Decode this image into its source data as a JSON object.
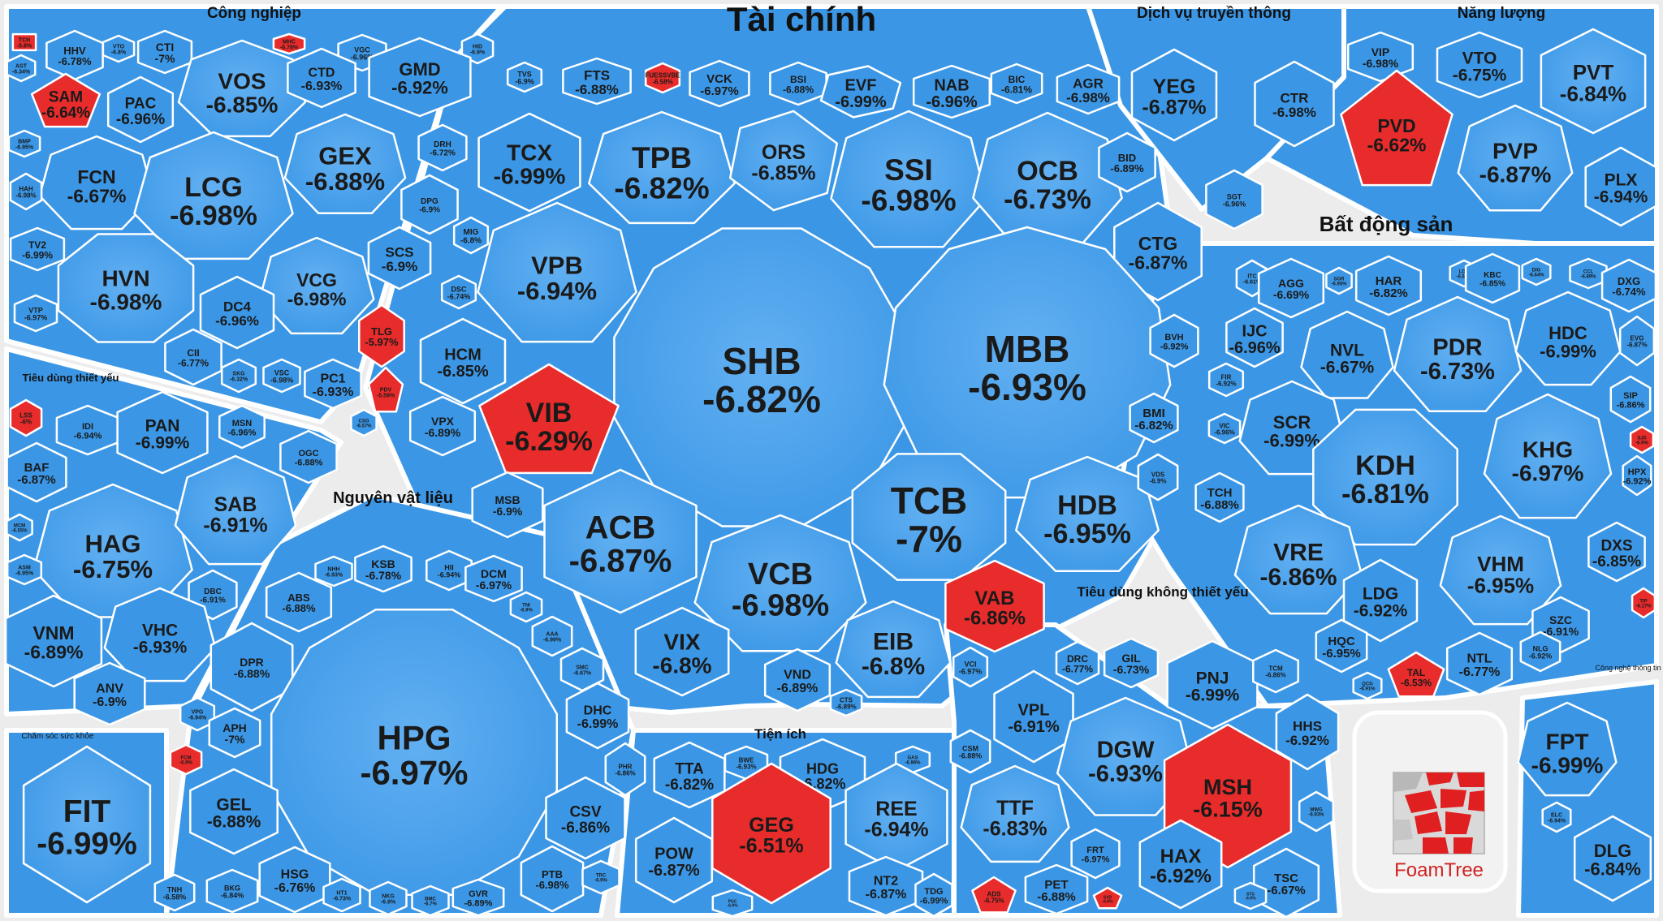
{
  "chart_data": {
    "type": "voronoi-treemap",
    "colors": {
      "down": "#3b97e6",
      "down_light": "#62b0f2",
      "red": "#e82b2b",
      "bg": "#efefef",
      "border": "#ffffff"
    },
    "logo_text": "FoamTree",
    "groups": [
      {
        "name": "Tài chính",
        "items": [
          {
            "ticker": "TVS",
            "change": "-6.9%"
          },
          {
            "ticker": "FTS",
            "change": "-6.88%"
          },
          {
            "ticker": "FUESSVBE",
            "change": "-6.58%"
          },
          {
            "ticker": "VCK",
            "change": "-6.97%"
          },
          {
            "ticker": "BSI",
            "change": "-6.88%"
          },
          {
            "ticker": "EVF",
            "change": "-6.99%"
          },
          {
            "ticker": "NAB",
            "change": "-6.96%"
          },
          {
            "ticker": "BIC",
            "change": "-6.81%"
          },
          {
            "ticker": "AGR",
            "change": "-6.98%"
          },
          {
            "ticker": "TCX",
            "change": "-6.99%"
          },
          {
            "ticker": "TPB",
            "change": "-6.82%"
          },
          {
            "ticker": "ORS",
            "change": "-6.85%"
          },
          {
            "ticker": "SSI",
            "change": "-6.98%"
          },
          {
            "ticker": "OCB",
            "change": "-6.73%"
          },
          {
            "ticker": "BID",
            "change": "-6.89%"
          },
          {
            "ticker": "MIG",
            "change": "-6.8%"
          },
          {
            "ticker": "VPB",
            "change": "-6.94%"
          },
          {
            "ticker": "CTG",
            "change": "-6.87%"
          },
          {
            "ticker": "SHB",
            "change": "-6.82%"
          },
          {
            "ticker": "MBB",
            "change": "-6.93%"
          },
          {
            "ticker": "DSC",
            "change": "-6.74%"
          },
          {
            "ticker": "HCM",
            "change": "-6.85%"
          },
          {
            "ticker": "BVH",
            "change": "-6.92%"
          },
          {
            "ticker": "VIB",
            "change": "-6.29%"
          },
          {
            "ticker": "VPX",
            "change": "-6.89%"
          },
          {
            "ticker": "BMI",
            "change": "-6.82%"
          },
          {
            "ticker": "MSB",
            "change": "-6.9%"
          },
          {
            "ticker": "ACB",
            "change": "-6.87%"
          },
          {
            "ticker": "TCB",
            "change": "-7%"
          },
          {
            "ticker": "HDB",
            "change": "-6.95%"
          },
          {
            "ticker": "VDS",
            "change": "-6.9%"
          },
          {
            "ticker": "VCB",
            "change": "-6.98%"
          },
          {
            "ticker": "VAB",
            "change": "-6.86%"
          },
          {
            "ticker": "VIX",
            "change": "-6.8%"
          },
          {
            "ticker": "EIB",
            "change": "-6.8%"
          },
          {
            "ticker": "VND",
            "change": "-6.89%"
          },
          {
            "ticker": "VCI",
            "change": "-6.97%"
          },
          {
            "ticker": "CTS",
            "change": "-6.89%"
          }
        ]
      },
      {
        "name": "Công nghiệp",
        "items": [
          {
            "ticker": "TCH",
            "change": "-5.8%"
          },
          {
            "ticker": "HHV",
            "change": "-6.78%"
          },
          {
            "ticker": "VTO",
            "change": "-6.8%"
          },
          {
            "ticker": "CTI",
            "change": "-7%"
          },
          {
            "ticker": "MHC",
            "change": "-6.78%"
          },
          {
            "ticker": "VGC",
            "change": "-6.96%"
          },
          {
            "ticker": "HID",
            "change": "-6.9%"
          },
          {
            "ticker": "AST",
            "change": "-6.34%"
          },
          {
            "ticker": "VOS",
            "change": "-6.85%"
          },
          {
            "ticker": "CTD",
            "change": "-6.93%"
          },
          {
            "ticker": "GMD",
            "change": "-6.92%"
          },
          {
            "ticker": "SAM",
            "change": "-6.64%"
          },
          {
            "ticker": "PAC",
            "change": "-6.96%"
          },
          {
            "ticker": "BMP",
            "change": "-6.95%"
          },
          {
            "ticker": "GEX",
            "change": "-6.88%"
          },
          {
            "ticker": "DRH",
            "change": "-6.72%"
          },
          {
            "ticker": "FCN",
            "change": "-6.67%"
          },
          {
            "ticker": "LCG",
            "change": "-6.98%"
          },
          {
            "ticker": "HAH",
            "change": "-6.98%"
          },
          {
            "ticker": "DPG",
            "change": "-6.9%"
          },
          {
            "ticker": "TV2",
            "change": "-6.99%"
          },
          {
            "ticker": "SCS",
            "change": "-6.9%"
          },
          {
            "ticker": "HVN",
            "change": "-6.98%"
          },
          {
            "ticker": "VCG",
            "change": "-6.98%"
          },
          {
            "ticker": "DC4",
            "change": "-6.96%"
          },
          {
            "ticker": "VTP",
            "change": "-6.97%"
          },
          {
            "ticker": "TLG",
            "change": "-5.97%"
          },
          {
            "ticker": "CII",
            "change": "-6.77%"
          },
          {
            "ticker": "SKG",
            "change": "-6.32%"
          },
          {
            "ticker": "VSC",
            "change": "-6.98%"
          },
          {
            "ticker": "PC1",
            "change": "-6.93%"
          },
          {
            "ticker": "PDV",
            "change": "-5.59%"
          },
          {
            "ticker": "CSG",
            "change": "-6.57%"
          }
        ]
      },
      {
        "name": "Dịch vụ truyền thông",
        "items": [
          {
            "ticker": "YEG",
            "change": "-6.87%"
          },
          {
            "ticker": "CTR",
            "change": "-6.98%"
          },
          {
            "ticker": "SGT",
            "change": "-6.96%"
          }
        ]
      },
      {
        "name": "Năng lượng",
        "items": [
          {
            "ticker": "VIP",
            "change": "-6.98%"
          },
          {
            "ticker": "VTO",
            "change": "-6.75%"
          },
          {
            "ticker": "PVT",
            "change": "-6.84%"
          },
          {
            "ticker": "PVD",
            "change": "-6.62%"
          },
          {
            "ticker": "PVP",
            "change": "-6.87%"
          },
          {
            "ticker": "PLX",
            "change": "-6.94%"
          }
        ]
      },
      {
        "name": "Bất động sản",
        "items": [
          {
            "ticker": "ITC",
            "change": "-6.61%"
          },
          {
            "ticker": "AGG",
            "change": "-6.69%"
          },
          {
            "ticker": "SGR",
            "change": "-6.95%"
          },
          {
            "ticker": "HAR",
            "change": "-6.82%"
          },
          {
            "ticker": "LDG",
            "change": "-6.67%"
          },
          {
            "ticker": "KBC",
            "change": "-6.85%"
          },
          {
            "ticker": "DIG",
            "change": "-6.64%"
          },
          {
            "ticker": "CCL",
            "change": "-6.89%"
          },
          {
            "ticker": "DXG",
            "change": "-6.74%"
          },
          {
            "ticker": "IJC",
            "change": "-6.96%"
          },
          {
            "ticker": "NVL",
            "change": "-6.67%"
          },
          {
            "ticker": "PDR",
            "change": "-6.73%"
          },
          {
            "ticker": "HDC",
            "change": "-6.99%"
          },
          {
            "ticker": "EVG",
            "change": "-6.87%"
          },
          {
            "ticker": "FIR",
            "change": "-6.92%"
          },
          {
            "ticker": "SCR",
            "change": "-6.99%"
          },
          {
            "ticker": "SIP",
            "change": "-6.86%"
          },
          {
            "ticker": "VIC",
            "change": "-6.96%"
          },
          {
            "ticker": "KDH",
            "change": "-6.81%"
          },
          {
            "ticker": "KHG",
            "change": "-6.97%"
          },
          {
            "ticker": "SJS",
            "change": "-6.9%"
          },
          {
            "ticker": "TCH",
            "change": "-6.88%"
          },
          {
            "ticker": "HPX",
            "change": "-6.92%"
          },
          {
            "ticker": "VRE",
            "change": "-6.86%"
          },
          {
            "ticker": "VHM",
            "change": "-6.95%"
          },
          {
            "ticker": "DXS",
            "change": "-6.85%"
          },
          {
            "ticker": "LDG",
            "change": "-6.92%"
          },
          {
            "ticker": "TIP",
            "change": "-6.17%"
          },
          {
            "ticker": "HQC",
            "change": "-6.95%"
          },
          {
            "ticker": "SZC",
            "change": "-6.91%"
          },
          {
            "ticker": "QCG",
            "change": "-6.91%"
          },
          {
            "ticker": "TAL",
            "change": "-6.53%"
          },
          {
            "ticker": "NTL",
            "change": "-6.77%"
          },
          {
            "ticker": "NLG",
            "change": "-6.92%"
          }
        ]
      },
      {
        "name": "Tiêu dùng thiết yếu",
        "items": [
          {
            "ticker": "LSS",
            "change": "-6%"
          },
          {
            "ticker": "IDI",
            "change": "-6.94%"
          },
          {
            "ticker": "PAN",
            "change": "-6.99%"
          },
          {
            "ticker": "MSN",
            "change": "-6.96%"
          },
          {
            "ticker": "OGC",
            "change": "-6.88%"
          },
          {
            "ticker": "BAF",
            "change": "-6.87%"
          },
          {
            "ticker": "HAG",
            "change": "-6.75%"
          },
          {
            "ticker": "SAB",
            "change": "-6.91%"
          },
          {
            "ticker": "MCM",
            "change": "-6.55%"
          },
          {
            "ticker": "ASM",
            "change": "-6.95%"
          },
          {
            "ticker": "DBC",
            "change": "-6.91%"
          },
          {
            "ticker": "VNM",
            "change": "-6.89%"
          },
          {
            "ticker": "VHC",
            "change": "-6.93%"
          },
          {
            "ticker": "ANV",
            "change": "-6.9%"
          }
        ]
      },
      {
        "name": "Nguyên vật liệu",
        "items": [
          {
            "ticker": "NHH",
            "change": "-6.93%"
          },
          {
            "ticker": "KSB",
            "change": "-6.78%"
          },
          {
            "ticker": "HII",
            "change": "-6.94%"
          },
          {
            "ticker": "DCM",
            "change": "-6.97%"
          },
          {
            "ticker": "TNI",
            "change": "-6.9%"
          },
          {
            "ticker": "ABS",
            "change": "-6.88%"
          },
          {
            "ticker": "AAA",
            "change": "-6.99%"
          },
          {
            "ticker": "SMC",
            "change": "-6.67%"
          },
          {
            "ticker": "DPR",
            "change": "-6.88%"
          },
          {
            "ticker": "DHC",
            "change": "-6.99%"
          },
          {
            "ticker": "VPG",
            "change": "-6.94%"
          },
          {
            "ticker": "APH",
            "change": "-7%"
          },
          {
            "ticker": "HPG",
            "change": "-6.97%"
          },
          {
            "ticker": "PHR",
            "change": "-6.86%"
          },
          {
            "ticker": "FCM",
            "change": "-6.9%"
          },
          {
            "ticker": "GEL",
            "change": "-6.88%"
          },
          {
            "ticker": "CSV",
            "change": "-6.86%"
          },
          {
            "ticker": "BKG",
            "change": "-6.84%"
          },
          {
            "ticker": "HSG",
            "change": "-6.76%"
          },
          {
            "ticker": "HT1",
            "change": "-6.73%"
          },
          {
            "ticker": "NKG",
            "change": "-6.9%"
          },
          {
            "ticker": "BMC",
            "change": "-6.7%"
          },
          {
            "ticker": "GVR",
            "change": "-6.89%"
          },
          {
            "ticker": "PTB",
            "change": "-6.98%"
          },
          {
            "ticker": "TRC",
            "change": "-6.9%"
          }
        ]
      },
      {
        "name": "Chăm sóc sức khỏe",
        "items": [
          {
            "ticker": "FIT",
            "change": "-6.99%"
          },
          {
            "ticker": "TNH",
            "change": "-6.58%"
          }
        ]
      },
      {
        "name": "Tiện ích",
        "items": [
          {
            "ticker": "TTA",
            "change": "-6.82%"
          },
          {
            "ticker": "BWE",
            "change": "-6.93%"
          },
          {
            "ticker": "HDG",
            "change": "-6.82%"
          },
          {
            "ticker": "GAS",
            "change": "-6.96%"
          },
          {
            "ticker": "GEG",
            "change": "-6.51%"
          },
          {
            "ticker": "REE",
            "change": "-6.94%"
          },
          {
            "ticker": "POW",
            "change": "-6.87%"
          },
          {
            "ticker": "NT2",
            "change": "-6.87%"
          },
          {
            "ticker": "PGC",
            "change": "-6.9%"
          },
          {
            "ticker": "TDG",
            "change": "-6.99%"
          }
        ]
      },
      {
        "name": "Tiêu dùng không thiết yếu",
        "items": [
          {
            "ticker": "DRC",
            "change": "-6.77%"
          },
          {
            "ticker": "GIL",
            "change": "-6.73%"
          },
          {
            "ticker": "PNJ",
            "change": "-6.99%"
          },
          {
            "ticker": "TCM",
            "change": "-6.86%"
          },
          {
            "ticker": "VPL",
            "change": "-6.91%"
          },
          {
            "ticker": "HHS",
            "change": "-6.92%"
          },
          {
            "ticker": "CSM",
            "change": "-6.88%"
          },
          {
            "ticker": "DGW",
            "change": "-6.93%"
          },
          {
            "ticker": "MSH",
            "change": "-6.15%"
          },
          {
            "ticker": "MWG",
            "change": "-6.93%"
          },
          {
            "ticker": "TTF",
            "change": "-6.83%"
          },
          {
            "ticker": "FRT",
            "change": "-6.97%"
          },
          {
            "ticker": "HAX",
            "change": "-6.92%"
          },
          {
            "ticker": "TSC",
            "change": "-6.67%"
          },
          {
            "ticker": "ADS",
            "change": "-6.75%"
          },
          {
            "ticker": "PET",
            "change": "-6.88%"
          },
          {
            "ticker": "SVD",
            "change": "-6.9%"
          },
          {
            "ticker": "STG",
            "change": "-6.9%"
          }
        ]
      },
      {
        "name": "Công nghệ thông tin",
        "items": [
          {
            "ticker": "FPT",
            "change": "-6.99%"
          },
          {
            "ticker": "ELC",
            "change": "-6.94%"
          },
          {
            "ticker": "DLG",
            "change": "-6.84%"
          }
        ]
      }
    ]
  }
}
